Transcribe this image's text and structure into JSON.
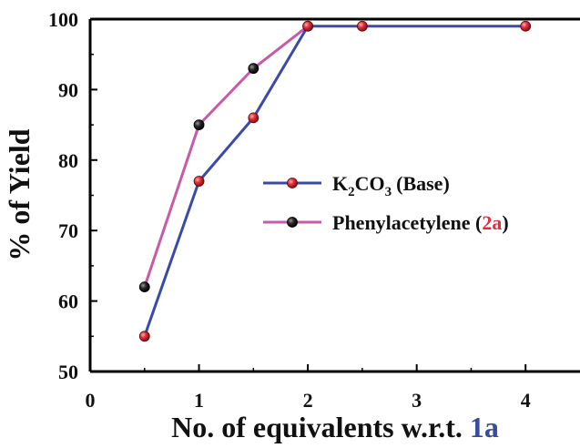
{
  "chart_data": {
    "type": "line",
    "title": "",
    "xlabel": {
      "text": "No. of equivalents w.r.t.",
      "highlight": "1a",
      "highlight_color": "#3a4a9c"
    },
    "ylabel": "% of Yield",
    "xlim": [
      0,
      4.5
    ],
    "ylim": [
      50,
      100
    ],
    "x_ticks": [
      0,
      1,
      2,
      3,
      4
    ],
    "x_tick_labels": [
      "0",
      "1",
      "2",
      "3",
      "4"
    ],
    "y_ticks": [
      50,
      60,
      70,
      80,
      90,
      100
    ],
    "y_tick_labels": [
      "50",
      "60",
      "70",
      "80",
      "90",
      "100"
    ],
    "grid": false,
    "legend_position": "center-right",
    "series": [
      {
        "name": "K2CO3 (Base)",
        "legend": {
          "k": "K",
          "sub1": "2",
          "co": "CO",
          "sub2": "3",
          "tail": "(Base)"
        },
        "line_color": "#3a4aa8",
        "marker_color": "#e0303a",
        "x": [
          0.5,
          1,
          1.5,
          2,
          2.5,
          4
        ],
        "values": [
          55,
          77,
          86,
          99,
          99,
          99
        ]
      },
      {
        "name": "Phenylacetylene (2a)",
        "legend": {
          "pre": "Phenylacetylene (",
          "highlight": "2a",
          "post": ")",
          "highlight_color": "#e0303a"
        },
        "line_color": "#c85aa8",
        "marker_color": "#1a1a1a",
        "x": [
          0.5,
          1,
          1.5,
          2
        ],
        "values": [
          62,
          85,
          93,
          99
        ]
      }
    ]
  }
}
